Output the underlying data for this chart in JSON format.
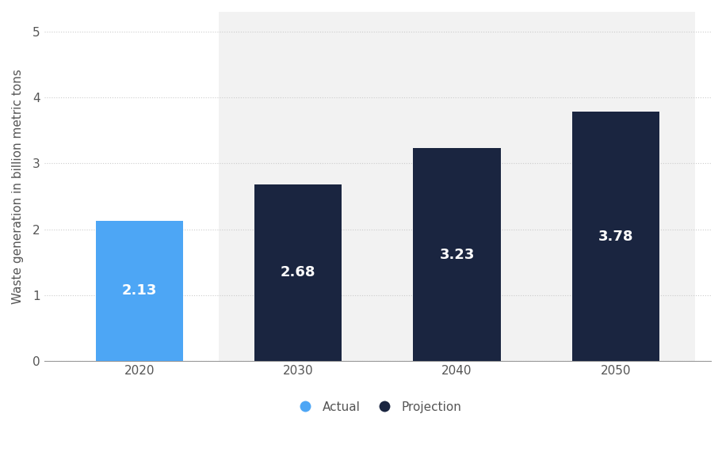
{
  "categories": [
    "2020",
    "2030",
    "2040",
    "2050"
  ],
  "values": [
    2.13,
    2.68,
    3.23,
    3.78
  ],
  "bar_colors": [
    "#4da6f5",
    "#1a2540",
    "#1a2540",
    "#1a2540"
  ],
  "projection_bar_indices": [
    1,
    2,
    3
  ],
  "ylabel": "Waste generation in billion metric tons",
  "ylim": [
    0,
    5.3
  ],
  "yticks": [
    0,
    1,
    2,
    3,
    4,
    5
  ],
  "bar_width": 0.55,
  "value_labels": [
    "2.13",
    "2.68",
    "3.23",
    "3.78"
  ],
  "label_color": "#ffffff",
  "label_fontsize": 13,
  "label_fontweight": "bold",
  "grid_color": "#cccccc",
  "grid_style": "dotted",
  "axis_color": "#999999",
  "tick_color": "#555555",
  "tick_fontsize": 11,
  "ylabel_fontsize": 11,
  "ylabel_color": "#555555",
  "legend_labels": [
    "Actual",
    "Projection"
  ],
  "legend_colors": [
    "#4da6f5",
    "#1a2540"
  ],
  "background_color": "#ffffff",
  "plot_bg_color": "#ffffff",
  "projection_shade_color": "#f2f2f2"
}
